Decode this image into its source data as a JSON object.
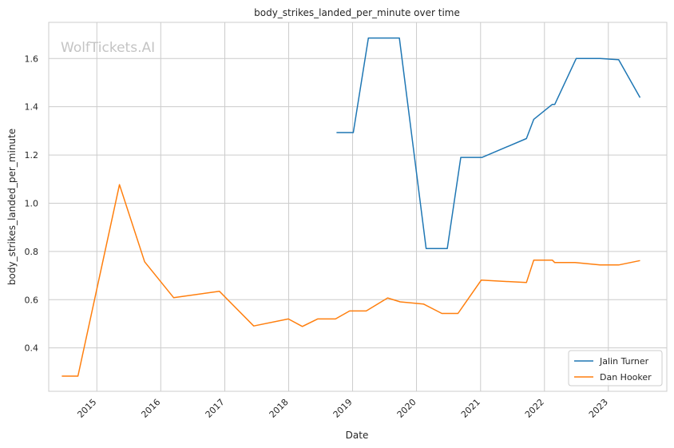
{
  "watermark": "WolfTickets.AI",
  "chart_data": {
    "type": "line",
    "title": "body_strikes_landed_per_minute over time",
    "xlabel": "Date",
    "ylabel": "body_strikes_landed_per_minute",
    "x_ticks": [
      "2015",
      "2016",
      "2017",
      "2018",
      "2019",
      "2020",
      "2021",
      "2022",
      "2023"
    ],
    "y_ticks": [
      "0.4",
      "0.6",
      "0.8",
      "1.0",
      "1.2",
      "1.4",
      "1.6"
    ],
    "xlim": [
      "2014-04-01",
      "2023-12-01"
    ],
    "ylim": [
      0.22,
      1.75
    ],
    "grid": true,
    "legend_position": "lower-right",
    "series": [
      {
        "name": "Jalin Turner",
        "color": "#1f77b4",
        "points": [
          [
            "2018-10-01",
            1.293
          ],
          [
            "2019-01-05",
            1.293
          ],
          [
            "2019-04-01",
            1.685
          ],
          [
            "2019-09-25",
            1.685
          ],
          [
            "2020-02-25",
            0.812
          ],
          [
            "2020-06-25",
            0.812
          ],
          [
            "2020-09-10",
            1.19
          ],
          [
            "2021-01-10",
            1.19
          ],
          [
            "2021-09-20",
            1.268
          ],
          [
            "2021-11-01",
            1.348
          ],
          [
            "2022-02-15",
            1.41
          ],
          [
            "2022-03-01",
            1.41
          ],
          [
            "2022-07-01",
            1.6
          ],
          [
            "2022-11-15",
            1.6
          ],
          [
            "2023-03-01",
            1.595
          ],
          [
            "2023-07-01",
            1.438
          ]
        ]
      },
      {
        "name": "Dan Hooker",
        "color": "#ff7f0e",
        "points": [
          [
            "2014-06-15",
            0.283
          ],
          [
            "2014-09-15",
            0.283
          ],
          [
            "2015-05-10",
            1.077
          ],
          [
            "2015-10-01",
            0.757
          ],
          [
            "2016-03-15",
            0.608
          ],
          [
            "2016-12-01",
            0.635
          ],
          [
            "2017-06-15",
            0.491
          ],
          [
            "2017-12-30",
            0.52
          ],
          [
            "2018-03-20",
            0.489
          ],
          [
            "2018-06-15",
            0.52
          ],
          [
            "2018-09-25",
            0.52
          ],
          [
            "2018-12-15",
            0.553
          ],
          [
            "2019-03-20",
            0.553
          ],
          [
            "2019-07-20",
            0.607
          ],
          [
            "2019-09-30",
            0.591
          ],
          [
            "2020-02-10",
            0.582
          ],
          [
            "2020-05-25",
            0.543
          ],
          [
            "2020-08-25",
            0.543
          ],
          [
            "2021-01-05",
            0.681
          ],
          [
            "2021-09-20",
            0.671
          ],
          [
            "2021-11-01",
            0.764
          ],
          [
            "2022-02-15",
            0.764
          ],
          [
            "2022-03-01",
            0.754
          ],
          [
            "2022-06-25",
            0.754
          ],
          [
            "2022-11-15",
            0.744
          ],
          [
            "2023-03-01",
            0.744
          ],
          [
            "2023-07-01",
            0.762
          ]
        ]
      }
    ]
  }
}
